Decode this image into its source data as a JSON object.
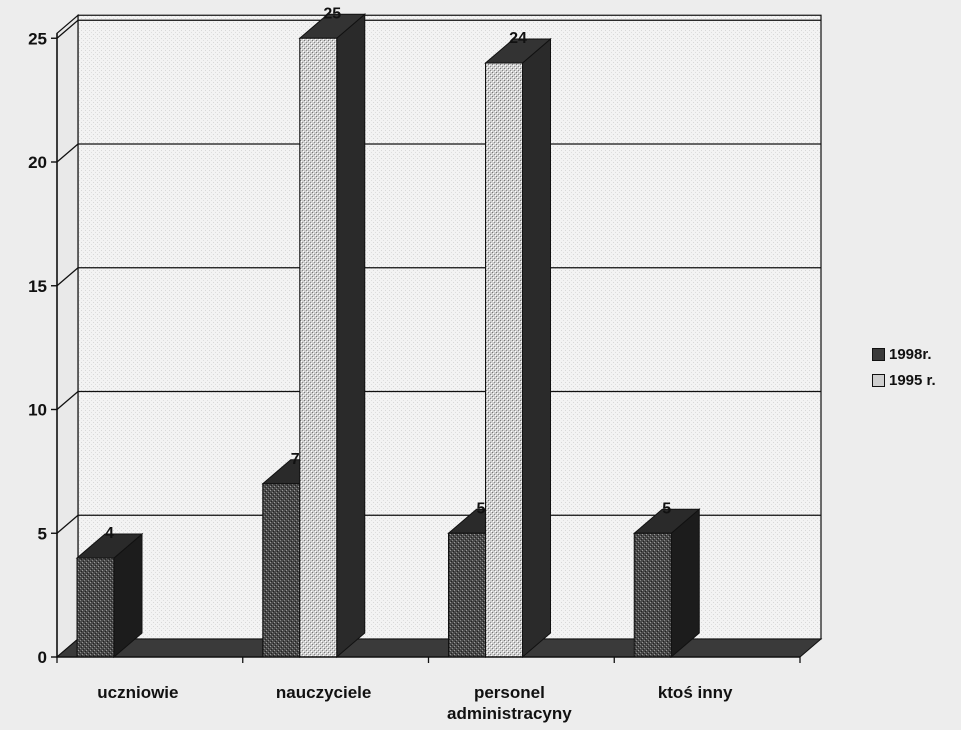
{
  "chart_data": {
    "type": "bar",
    "categories": [
      "uczniowie",
      "nauczyciele",
      "personel administracyny",
      "ktoś inny"
    ],
    "category_lines": [
      [
        "uczniowie"
      ],
      [
        "nauczyciele"
      ],
      [
        "personel",
        "administracyny"
      ],
      [
        "ktoś inny"
      ]
    ],
    "series": [
      {
        "name": "1998r.",
        "values": [
          4,
          7,
          5,
          5
        ]
      },
      {
        "name": "1995 r.",
        "values": [
          0,
          25,
          24,
          0
        ]
      }
    ],
    "data_labels": [
      [
        "4",
        "7",
        "5",
        "5"
      ],
      [
        "",
        "25",
        "24",
        ""
      ]
    ],
    "yticks": [
      "0",
      "5",
      "10",
      "15",
      "20",
      "25"
    ],
    "ylim": [
      0,
      25
    ],
    "grid": true,
    "legend_position": "right",
    "colors": {
      "series_dark": "#4a4a4a",
      "series_light": "#cfcfcf",
      "bar_side_dark": "#1c1c1c",
      "bar_top_dark": "#2a2a2a",
      "bar_side_light": "#2a2a2a",
      "bar_top_light": "#333333",
      "floor": "#3a3a3a",
      "plot_back": "#f3f3f3",
      "gridline": "#111111"
    }
  },
  "legend": {
    "items": [
      {
        "label": "1998r."
      },
      {
        "label": "1995 r."
      }
    ]
  }
}
